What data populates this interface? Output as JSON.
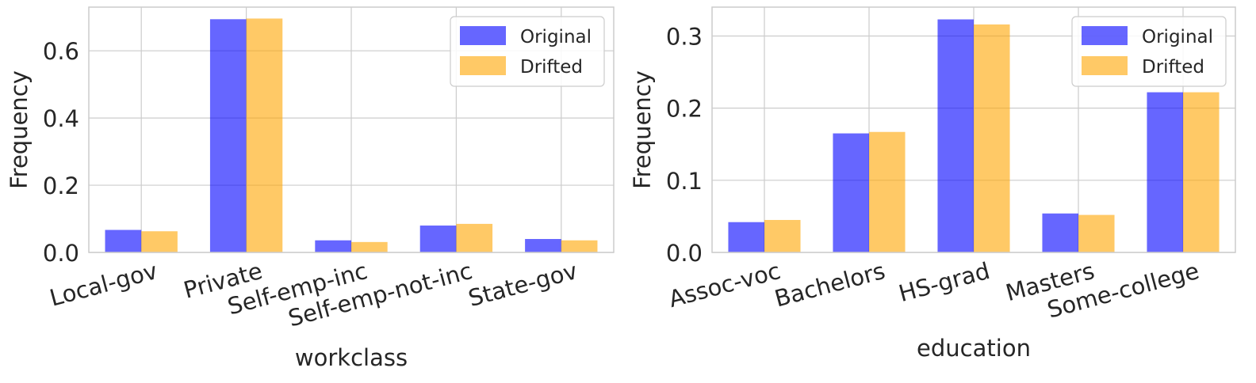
{
  "chart_data": [
    {
      "type": "bar",
      "title": "",
      "xlabel": "workclass",
      "ylabel": "Frequency",
      "ylim": [
        0,
        0.73
      ],
      "yticks": [
        0.0,
        0.2,
        0.4,
        0.6
      ],
      "ytick_labels": [
        "0.0",
        "0.2",
        "0.4",
        "0.6"
      ],
      "grid": true,
      "legend_position": "top-right",
      "categories": [
        "Local-gov",
        "Private",
        "Self-emp-inc",
        "Self-emp-not-inc",
        "State-gov"
      ],
      "series": [
        {
          "name": "Original",
          "color": "#0000ff",
          "opacity": 0.6,
          "values": [
            0.067,
            0.694,
            0.036,
            0.08,
            0.04
          ]
        },
        {
          "name": "Drifted",
          "color": "#ffa500",
          "opacity": 0.6,
          "values": [
            0.063,
            0.696,
            0.031,
            0.085,
            0.036
          ]
        }
      ]
    },
    {
      "type": "bar",
      "title": "",
      "xlabel": "education",
      "ylabel": "Frequency",
      "ylim": [
        0,
        0.34
      ],
      "yticks": [
        0.0,
        0.1,
        0.2,
        0.3
      ],
      "ytick_labels": [
        "0.0",
        "0.1",
        "0.2",
        "0.3"
      ],
      "grid": true,
      "legend_position": "top-right",
      "categories": [
        "Assoc-voc",
        "Bachelors",
        "HS-grad",
        "Masters",
        "Some-college"
      ],
      "series": [
        {
          "name": "Original",
          "color": "#0000ff",
          "opacity": 0.6,
          "values": [
            0.042,
            0.165,
            0.323,
            0.054,
            0.222
          ]
        },
        {
          "name": "Drifted",
          "color": "#ffa500",
          "opacity": 0.6,
          "values": [
            0.045,
            0.167,
            0.316,
            0.052,
            0.222
          ]
        }
      ]
    }
  ]
}
